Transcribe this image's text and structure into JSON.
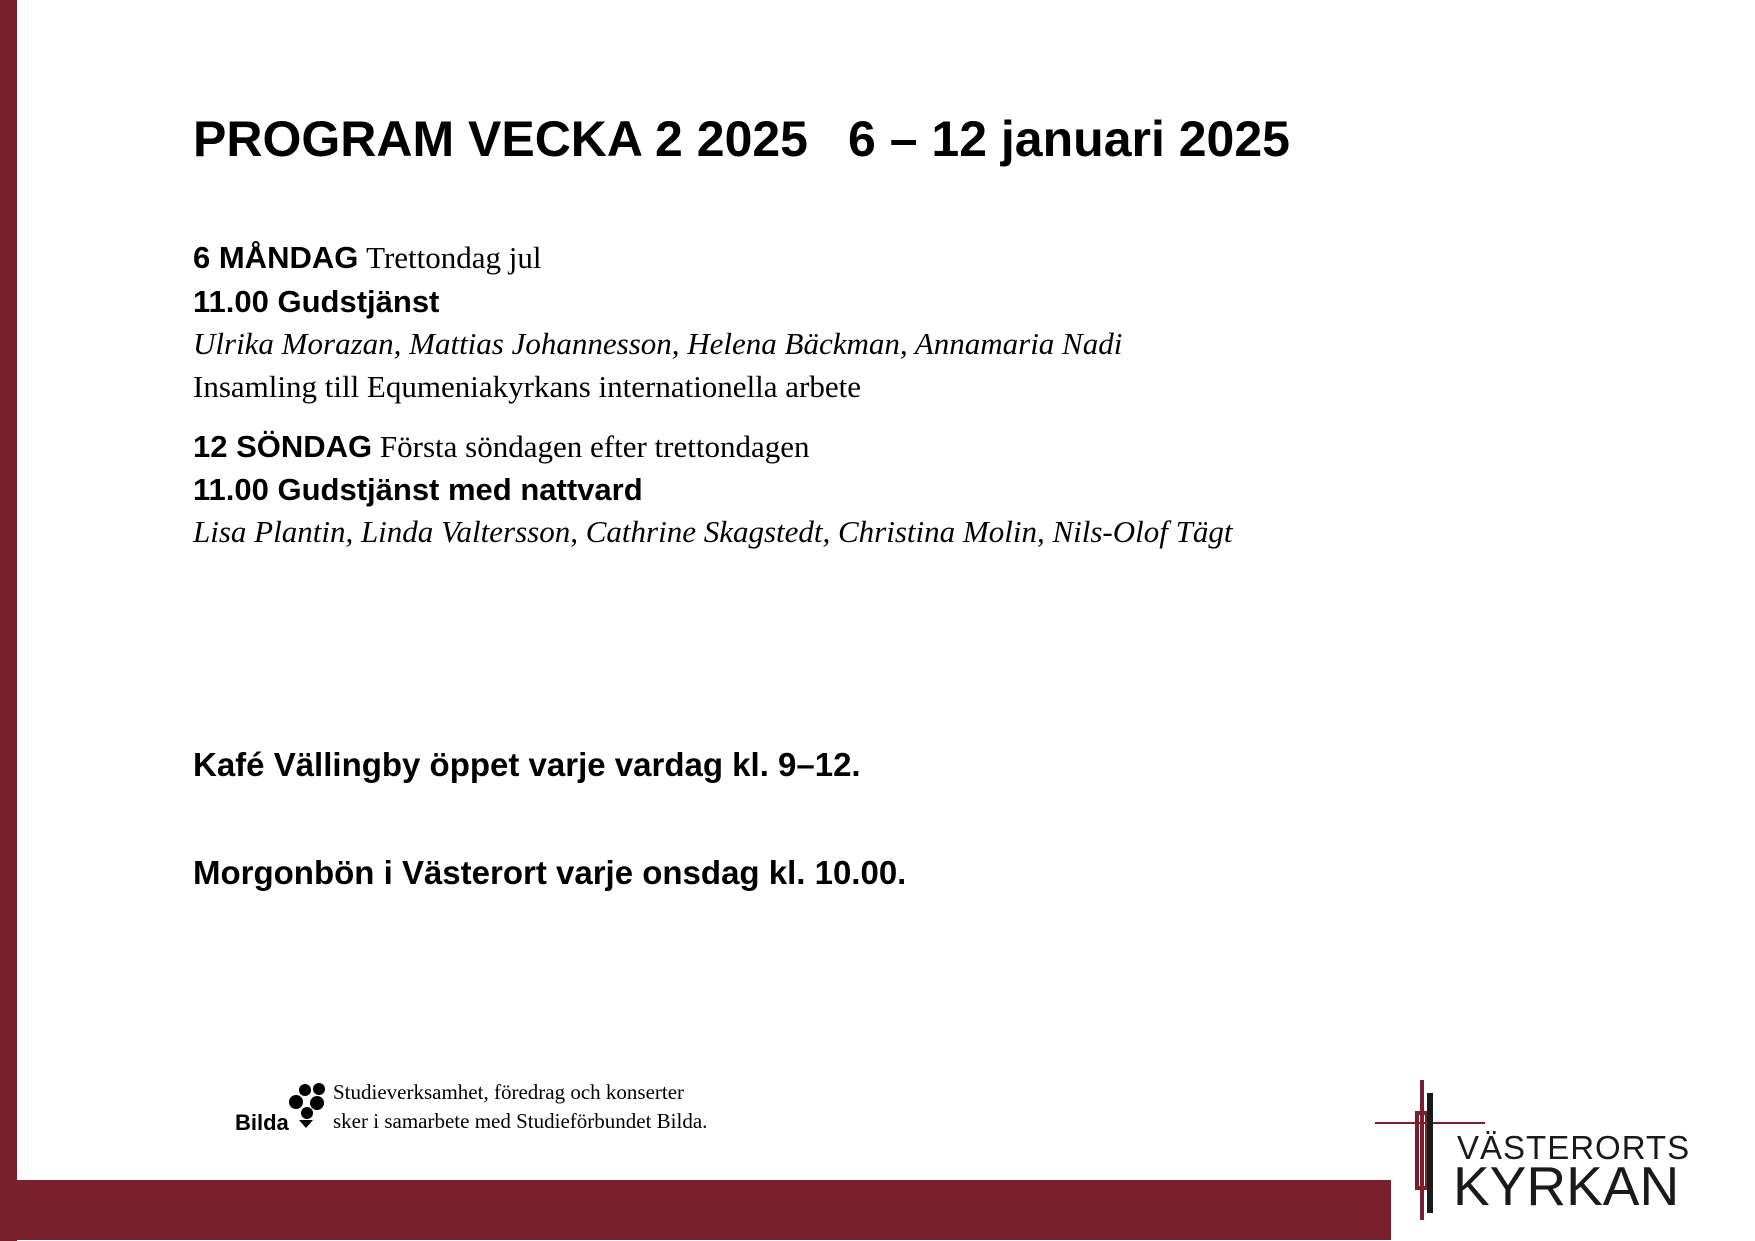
{
  "title": {
    "week": "PROGRAM VECKA 2 2025",
    "dates": "6 – 12 januari 2025"
  },
  "days": [
    {
      "day": "6 MÅNDAG",
      "occasion": "Trettondag jul",
      "event": "11.00 Gudstjänst",
      "people": "Ulrika Morazan, Mattias Johannesson, Helena Bäckman, Annamaria Nadi",
      "note": "Insamling till Equmeniakyrkans internationella arbete"
    },
    {
      "day": "12 SÖNDAG",
      "occasion": "Första söndagen efter trettondagen",
      "event": "11.00 Gudstjänst med nattvard",
      "people": "Lisa Plantin, Linda Valtersson, Cathrine Skagstedt, Christina Molin, Nils-Olof Tägt"
    }
  ],
  "notices": [
    "Kafé Vällingby öppet varje vardag kl. 9–12.",
    "Morgonbön i Västerort varje onsdag kl. 10.00."
  ],
  "footer": {
    "bilda_logo": "Bilda",
    "bilda_lines": [
      "Studieverksamhet, föredrag och konserter",
      "sker i samarbete med Studieförbundet Bilda."
    ],
    "church_logo": {
      "line1": "VÄSTERORTS",
      "line2": "KYRKAN"
    }
  },
  "colors": {
    "accent": "#7a1f2d"
  }
}
